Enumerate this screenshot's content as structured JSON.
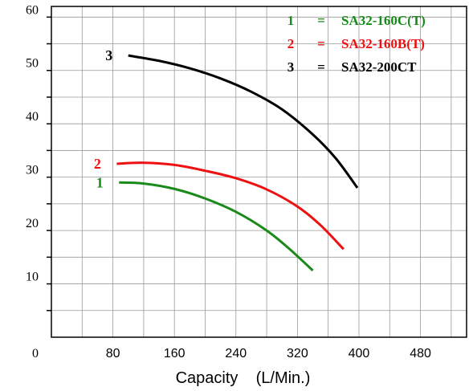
{
  "chart_data": {
    "type": "line",
    "title": "",
    "xlabel": "Capacity    (L/Min.)",
    "ylabel": "",
    "xlim": [
      0,
      540
    ],
    "ylim": [
      0,
      62
    ],
    "x_ticks": [
      "80",
      "160",
      "240",
      "320",
      "400",
      "480"
    ],
    "y_ticks": [
      "10",
      "20",
      "30",
      "40",
      "50",
      "60"
    ],
    "origin_label": "0",
    "grid": true,
    "legend": [
      {
        "num": "1",
        "eq": "=",
        "name": "SA32-160C(T)",
        "color": "#1a8a1a"
      },
      {
        "num": "2",
        "eq": "=",
        "name": "SA32-160B(T)",
        "color": "#ee1111"
      },
      {
        "num": "3",
        "eq": "=",
        "name": "SA32-200CT",
        "color": "#000000"
      }
    ],
    "series": [
      {
        "label": "1",
        "color": "#1a8a1a",
        "points": [
          [
            88,
            29
          ],
          [
            120,
            28.8
          ],
          [
            160,
            27.8
          ],
          [
            200,
            26
          ],
          [
            240,
            23.5
          ],
          [
            280,
            20
          ],
          [
            310,
            16.5
          ],
          [
            340,
            12.5
          ]
        ]
      },
      {
        "label": "2",
        "color": "#ee1111",
        "points": [
          [
            85,
            32.5
          ],
          [
            120,
            32.7
          ],
          [
            160,
            32.3
          ],
          [
            200,
            31.2
          ],
          [
            240,
            29.8
          ],
          [
            280,
            27.7
          ],
          [
            320,
            24.5
          ],
          [
            350,
            21
          ],
          [
            380,
            16.5
          ]
        ]
      },
      {
        "label": "3",
        "color": "#000000",
        "points": [
          [
            100,
            52.8
          ],
          [
            140,
            51.8
          ],
          [
            180,
            50.4
          ],
          [
            220,
            48.5
          ],
          [
            260,
            46
          ],
          [
            300,
            42.7
          ],
          [
            340,
            38
          ],
          [
            370,
            33.5
          ],
          [
            398,
            28
          ]
        ]
      }
    ]
  }
}
